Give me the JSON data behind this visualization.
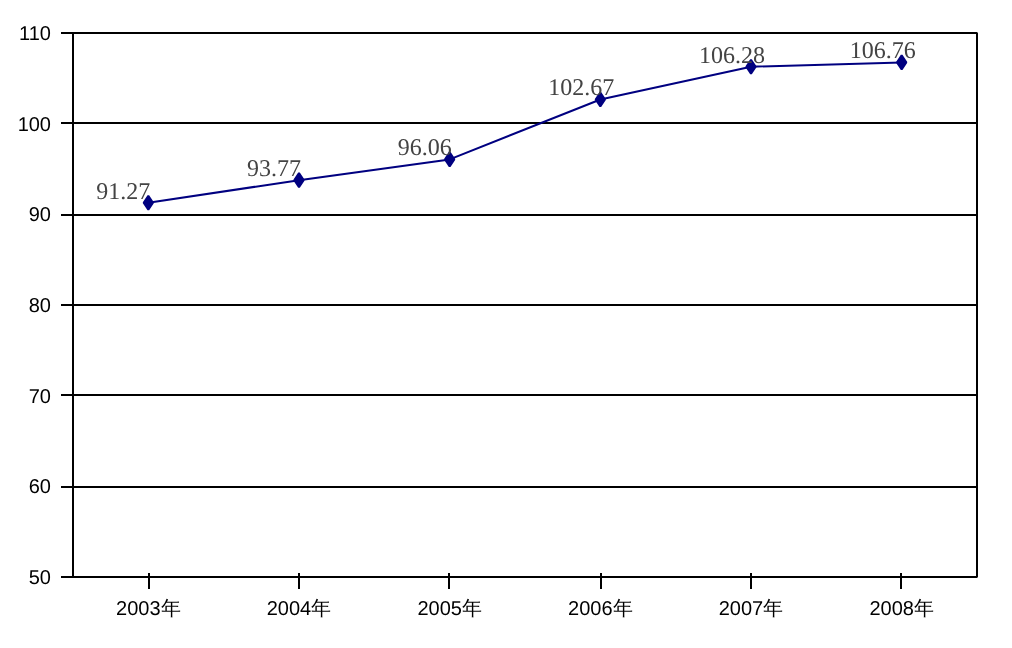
{
  "chart_data": {
    "type": "line",
    "categories": [
      "2003年",
      "2004年",
      "2005年",
      "2006年",
      "2007年",
      "2008年"
    ],
    "series": [
      {
        "color": "#000080",
        "values": [
          91.27,
          93.77,
          96.06,
          102.67,
          106.28,
          106.76
        ]
      }
    ],
    "ylim": [
      50,
      110
    ],
    "yticks": [
      50,
      60,
      70,
      80,
      90,
      100,
      110
    ],
    "grid": "y",
    "marker": "diamond",
    "line_style": "solid",
    "data_labels": true
  }
}
